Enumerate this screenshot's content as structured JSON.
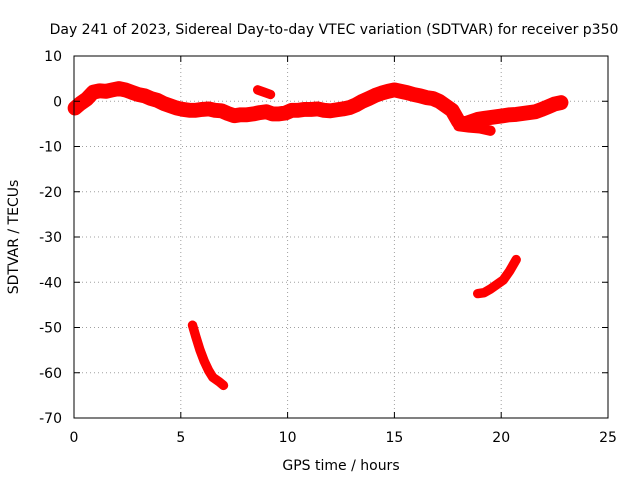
{
  "chart_data": {
    "type": "scatter",
    "title": "Day 241 of 2023, Sidereal Day-to-day VTEC variation (SDTVAR) for receiver p350",
    "xlabel": "GPS time / hours",
    "ylabel": "SDTVAR / TECUs",
    "xlim": [
      0,
      25
    ],
    "ylim": [
      -70,
      10
    ],
    "xticks": [
      0,
      5,
      10,
      15,
      20,
      25
    ],
    "yticks": [
      -70,
      -60,
      -50,
      -40,
      -30,
      -20,
      -10,
      0,
      10
    ],
    "grid": true,
    "legend": "none",
    "series_color": "#ff0000",
    "series": [
      {
        "name": "main-arc",
        "band": 1.2,
        "x": [
          0.05,
          0.3,
          0.6,
          0.9,
          1.2,
          1.5,
          1.8,
          2.1,
          2.4,
          2.7,
          3.0,
          3.3,
          3.6,
          3.9,
          4.2,
          4.5,
          4.8,
          5.1,
          5.4,
          5.7,
          6.0,
          6.3,
          6.6,
          6.9,
          7.2,
          7.5,
          7.8,
          8.1,
          8.4,
          8.7,
          9.0,
          9.3,
          9.6,
          9.9,
          10.2,
          10.5,
          10.8,
          11.1,
          11.4,
          11.7,
          12.0,
          12.3,
          12.6,
          12.9,
          13.2,
          13.5,
          13.8,
          14.1,
          14.4,
          14.7,
          15.0,
          15.3,
          15.6,
          15.9,
          16.2,
          16.5,
          16.8,
          17.1,
          17.4,
          17.7,
          18.0,
          18.3,
          18.6,
          18.9,
          19.2,
          19.5,
          19.8,
          20.1,
          20.4,
          20.7,
          21.0,
          21.3,
          21.6,
          21.9,
          22.2,
          22.5,
          22.8
        ],
        "y": [
          -1.5,
          -0.5,
          0.5,
          2.0,
          2.3,
          2.2,
          2.5,
          2.8,
          2.5,
          2.0,
          1.5,
          1.2,
          0.6,
          0.2,
          -0.5,
          -1.0,
          -1.5,
          -1.8,
          -2.0,
          -2.0,
          -1.8,
          -1.7,
          -2.0,
          -2.1,
          -2.7,
          -3.2,
          -3.0,
          -3.0,
          -2.8,
          -2.5,
          -2.3,
          -2.8,
          -2.8,
          -2.6,
          -2.0,
          -2.0,
          -1.8,
          -1.8,
          -1.7,
          -2.0,
          -2.1,
          -1.9,
          -1.7,
          -1.4,
          -0.8,
          0.0,
          0.6,
          1.3,
          1.8,
          2.2,
          2.5,
          2.2,
          1.9,
          1.5,
          1.2,
          0.8,
          0.6,
          0.0,
          -1.0,
          -2.0,
          -4.5,
          -5.0,
          -4.5,
          -4.0,
          -3.8,
          -3.6,
          -3.4,
          -3.2,
          -3.0,
          -2.9,
          -2.7,
          -2.5,
          -2.3,
          -1.8,
          -1.2,
          -0.6,
          -0.3
        ]
      },
      {
        "name": "short-arc-near-9h",
        "band": 0.6,
        "x": [
          8.6,
          8.9,
          9.2
        ],
        "y": [
          2.5,
          2.0,
          1.5
        ]
      },
      {
        "name": "short-arc-near-19h",
        "band": 0.7,
        "x": [
          18.0,
          18.5,
          19.0,
          19.5
        ],
        "y": [
          -5.5,
          -5.8,
          -6.0,
          -6.5
        ]
      },
      {
        "name": "falling-arc-near-6h",
        "band": 0.6,
        "x": [
          5.55,
          5.7,
          5.9,
          6.1,
          6.3,
          6.5,
          6.8,
          7.0
        ],
        "y": [
          -49.5,
          -52.0,
          -55.0,
          -57.5,
          -59.5,
          -61.0,
          -62.0,
          -62.8
        ]
      },
      {
        "name": "rising-arc-near-20h",
        "band": 0.6,
        "x": [
          18.9,
          19.2,
          19.5,
          19.8,
          20.1,
          20.4,
          20.7
        ],
        "y": [
          -42.5,
          -42.3,
          -41.5,
          -40.5,
          -39.5,
          -37.5,
          -35.0
        ]
      }
    ]
  }
}
